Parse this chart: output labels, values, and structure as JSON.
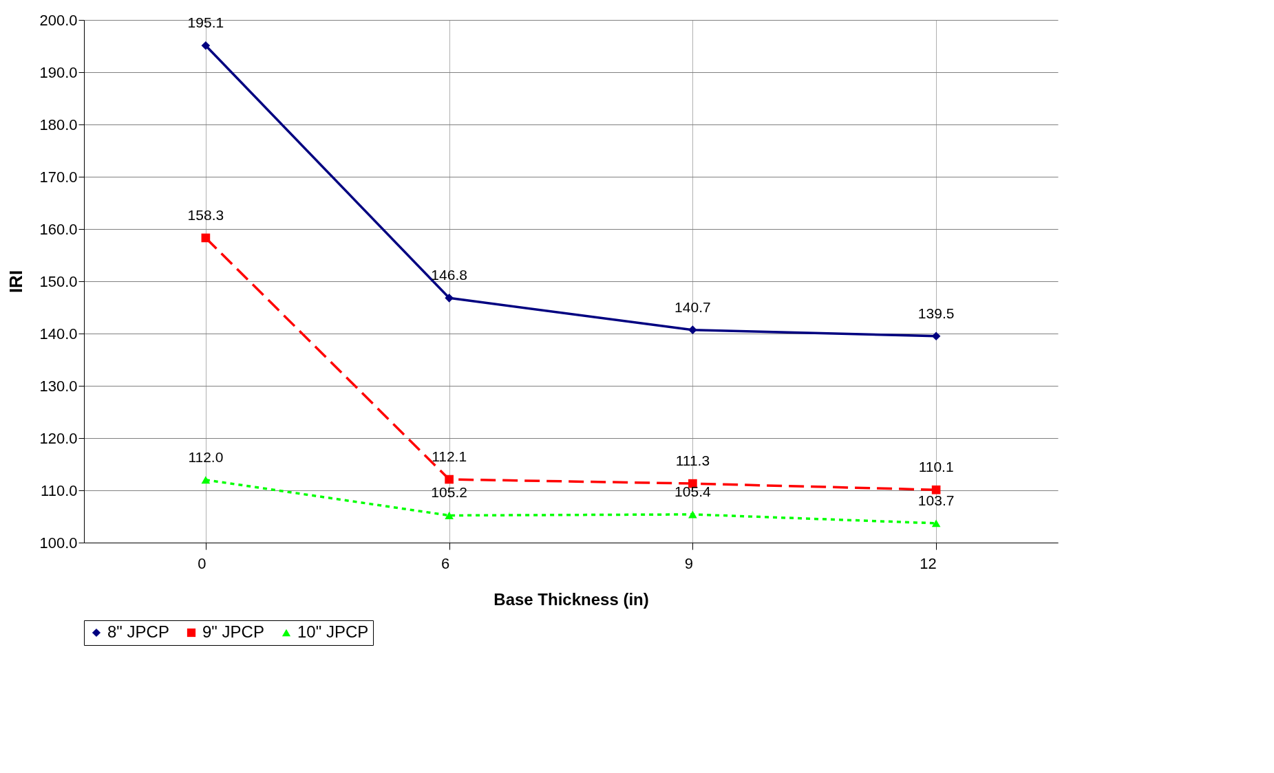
{
  "chart_data": {
    "type": "line",
    "xlabel": "Base Thickness (in)",
    "ylabel": "IRI",
    "categories": [
      "0",
      "6",
      "9",
      "12"
    ],
    "series": [
      {
        "name": "8\" JPCP",
        "color": "#000080",
        "marker": "diamond",
        "line_style": "solid",
        "values": [
          195.1,
          146.8,
          140.7,
          139.5
        ],
        "value_labels": [
          "195.1",
          "146.8",
          "140.7",
          "139.5"
        ]
      },
      {
        "name": "9\" JPCP",
        "color": "#ff0000",
        "marker": "square",
        "line_style": "dashed",
        "values": [
          158.3,
          112.1,
          111.3,
          110.1
        ],
        "value_labels": [
          "158.3",
          "112.1",
          "111.3",
          "110.1"
        ]
      },
      {
        "name": "10\" JPCP",
        "color": "#00ff00",
        "marker": "triangle",
        "line_style": "dotted",
        "values": [
          112.0,
          105.2,
          105.4,
          103.7
        ],
        "value_labels": [
          "112.0",
          "105.2",
          "105.4",
          "103.7"
        ]
      }
    ],
    "ylim": [
      100,
      200
    ],
    "yticks": [
      {
        "value": 100,
        "label": "100.0"
      },
      {
        "value": 110,
        "label": "110.0"
      },
      {
        "value": 120,
        "label": "120.0"
      },
      {
        "value": 130,
        "label": "130.0"
      },
      {
        "value": 140,
        "label": "140.0"
      },
      {
        "value": 150,
        "label": "150.0"
      },
      {
        "value": 160,
        "label": "160.0"
      },
      {
        "value": 170,
        "label": "170.0"
      },
      {
        "value": 180,
        "label": "180.0"
      },
      {
        "value": 190,
        "label": "190.0"
      },
      {
        "value": 200,
        "label": "200.0"
      }
    ],
    "grid": true,
    "legend": "bottom"
  }
}
